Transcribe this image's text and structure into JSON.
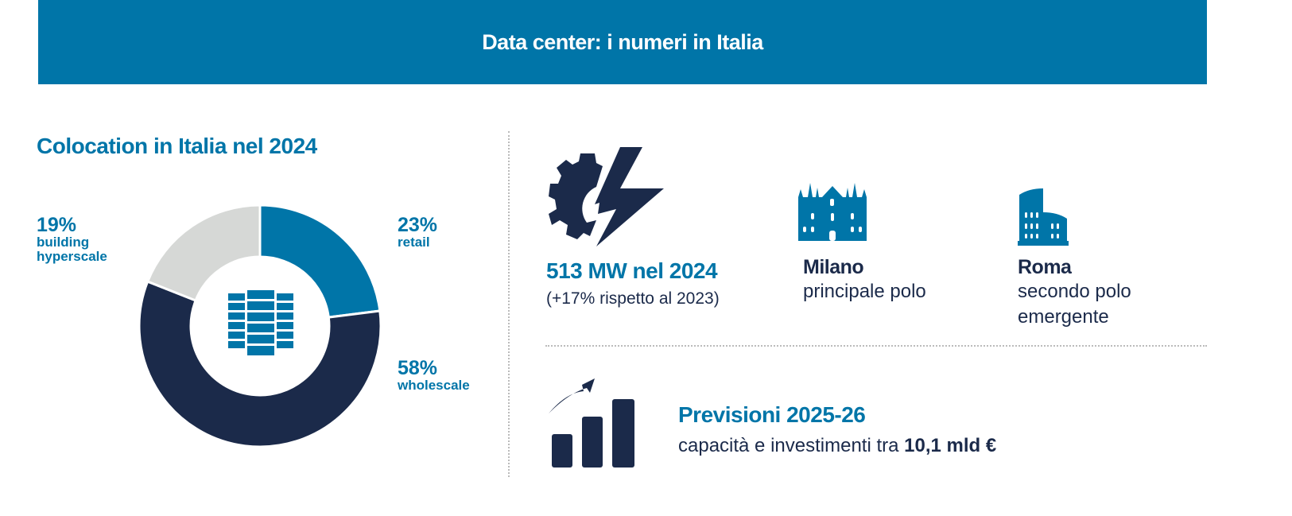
{
  "header": {
    "title": "Data center: i numeri in Italia"
  },
  "chart_data": {
    "type": "pie",
    "title": "Colocation in Italia nel 2024",
    "categories": [
      "retail",
      "wholescale",
      "building hyperscale"
    ],
    "values": [
      23,
      58,
      19
    ],
    "value_labels": [
      "23%",
      "58%",
      "19%"
    ],
    "colors": [
      "#0075a8",
      "#1b2a4a",
      "#d6d8d6"
    ],
    "donut": true,
    "center_icon": "server-rack-icon"
  },
  "stats": {
    "power": {
      "icon": "gear-lightning-icon",
      "value": "513 MW nel 2024",
      "note": "(+17% rispetto al 2023)"
    },
    "milano": {
      "icon": "milan-cathedral-icon",
      "title": "Milano",
      "text": "principale polo"
    },
    "roma": {
      "icon": "colosseum-icon",
      "title": "Roma",
      "text_line1": "secondo polo",
      "text_line2": "emergente"
    },
    "forecast": {
      "icon": "growth-bar-chart-icon",
      "title": "Previsioni 2025-26",
      "text": "capacità e investimenti tra",
      "amount": "10,1 mld €"
    }
  }
}
